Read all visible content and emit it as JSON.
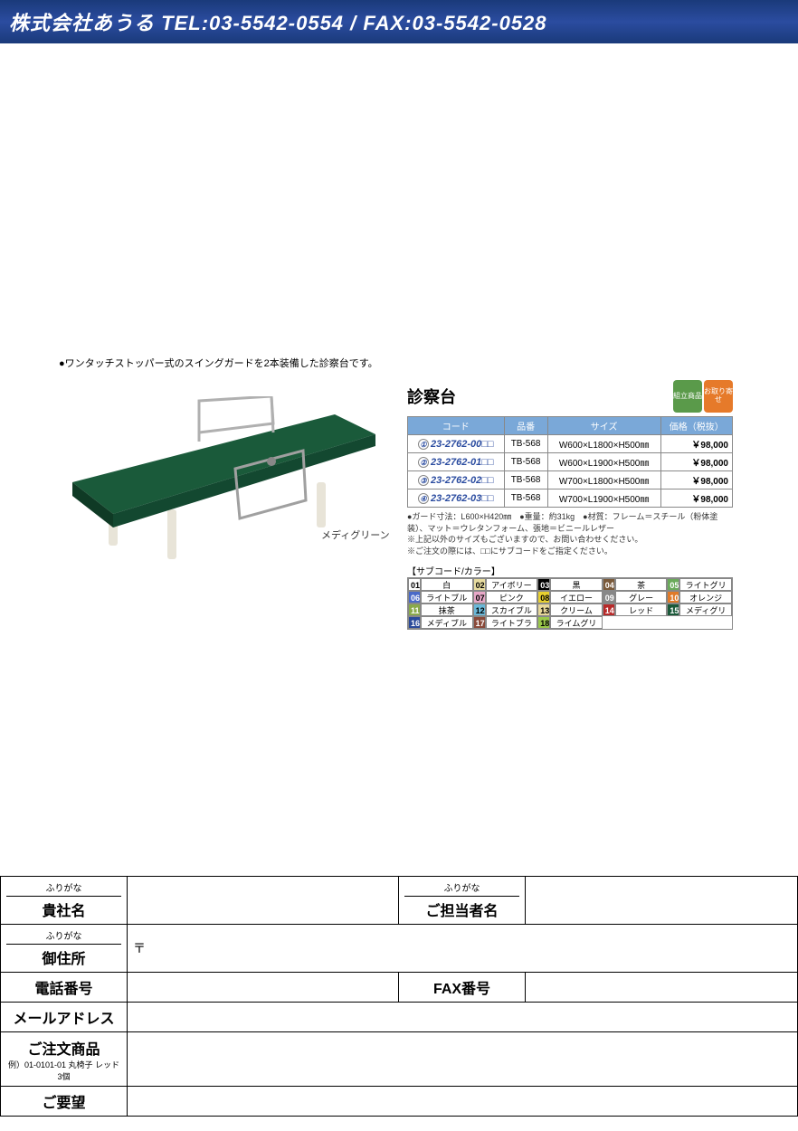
{
  "header": {
    "company": "株式会社あうる",
    "tel_label": "TEL:",
    "tel": "03-5542-0554",
    "sep": " / ",
    "fax_label": "FAX:",
    "fax": "03-5542-0528"
  },
  "product": {
    "desc_bullet": "●ワンタッチストッパー式のスイングガードを2本装備した診察台です。",
    "image_label": "メディグリーン",
    "title": "診察台",
    "badges": [
      "組立商品",
      "お取り寄せ"
    ],
    "table": {
      "headers": [
        "コード",
        "品番",
        "サイズ",
        "価格（税抜）"
      ],
      "rows": [
        {
          "num": "①",
          "code": "23-2762-00□□",
          "model": "TB-568",
          "size": "W600×L1800×H500㎜",
          "price": "￥98,000"
        },
        {
          "num": "②",
          "code": "23-2762-01□□",
          "model": "TB-568",
          "size": "W600×L1900×H500㎜",
          "price": "￥98,000"
        },
        {
          "num": "③",
          "code": "23-2762-02□□",
          "model": "TB-568",
          "size": "W700×L1800×H500㎜",
          "price": "￥98,000"
        },
        {
          "num": "④",
          "code": "23-2762-03□□",
          "model": "TB-568",
          "size": "W700×L1900×H500㎜",
          "price": "￥98,000"
        }
      ]
    },
    "notes": [
      "●ガード寸法：L600×H420㎜　●重量：約31kg　●材質：フレーム＝スチール（粉体塗装）、マット＝ウレタンフォーム、張地＝ビニールレザー",
      "※上記以外のサイズもございますので、お問い合わせください。",
      "※ご注文の際には、□□にサブコードをご指定ください。"
    ],
    "subcode_label": "【サブコード/カラー】",
    "colors": [
      {
        "code": "01",
        "name": "白",
        "bg": "#ffffff",
        "fg": "#000"
      },
      {
        "code": "02",
        "name": "アイボリー",
        "bg": "#e8dca0",
        "fg": "#000"
      },
      {
        "code": "03",
        "name": "黒",
        "bg": "#000000",
        "fg": "#fff"
      },
      {
        "code": "04",
        "name": "茶",
        "bg": "#7a5a3a",
        "fg": "#fff"
      },
      {
        "code": "05",
        "name": "ライトグリーン",
        "bg": "#6aaa5a",
        "fg": "#fff"
      },
      {
        "code": "06",
        "name": "ライトブルー",
        "bg": "#4a6ac8",
        "fg": "#fff"
      },
      {
        "code": "07",
        "name": "ピンク",
        "bg": "#e8a8c8",
        "fg": "#000"
      },
      {
        "code": "08",
        "name": "イエロー",
        "bg": "#e8d030",
        "fg": "#000"
      },
      {
        "code": "09",
        "name": "グレー",
        "bg": "#888888",
        "fg": "#fff"
      },
      {
        "code": "10",
        "name": "オレンジ",
        "bg": "#e07a2a",
        "fg": "#fff"
      },
      {
        "code": "11",
        "name": "抹茶",
        "bg": "#8aaa4a",
        "fg": "#fff"
      },
      {
        "code": "12",
        "name": "スカイブルー",
        "bg": "#6ab8d8",
        "fg": "#000"
      },
      {
        "code": "13",
        "name": "クリーム",
        "bg": "#e8d89a",
        "fg": "#000"
      },
      {
        "code": "14",
        "name": "レッド",
        "bg": "#b82a2a",
        "fg": "#fff"
      },
      {
        "code": "15",
        "name": "メディグリーン",
        "bg": "#1a5a3a",
        "fg": "#fff"
      },
      {
        "code": "16",
        "name": "メディブルー",
        "bg": "#2a4a9a",
        "fg": "#fff"
      },
      {
        "code": "17",
        "name": "ライトブラウン",
        "bg": "#8a4a3a",
        "fg": "#fff"
      },
      {
        "code": "18",
        "name": "ライムグリーン",
        "bg": "#9ac84a",
        "fg": "#000"
      }
    ],
    "illustration": {
      "mat_color": "#1a5a3a",
      "leg_color": "#e8e4d8",
      "guard_color": "#c8c8c8"
    }
  },
  "form": {
    "furigana_label": "ふりがな",
    "company_label": "貴社名",
    "contact_label": "ご担当者名",
    "address_label": "御住所",
    "postal_mark": "〒",
    "phone_label": "電話番号",
    "fax_label": "FAX番号",
    "email_label": "メールアドレス",
    "order_label": "ご注文商品",
    "order_example": "例）01-0101-01 丸椅子 レッド 3個",
    "request_label": "ご要望"
  }
}
